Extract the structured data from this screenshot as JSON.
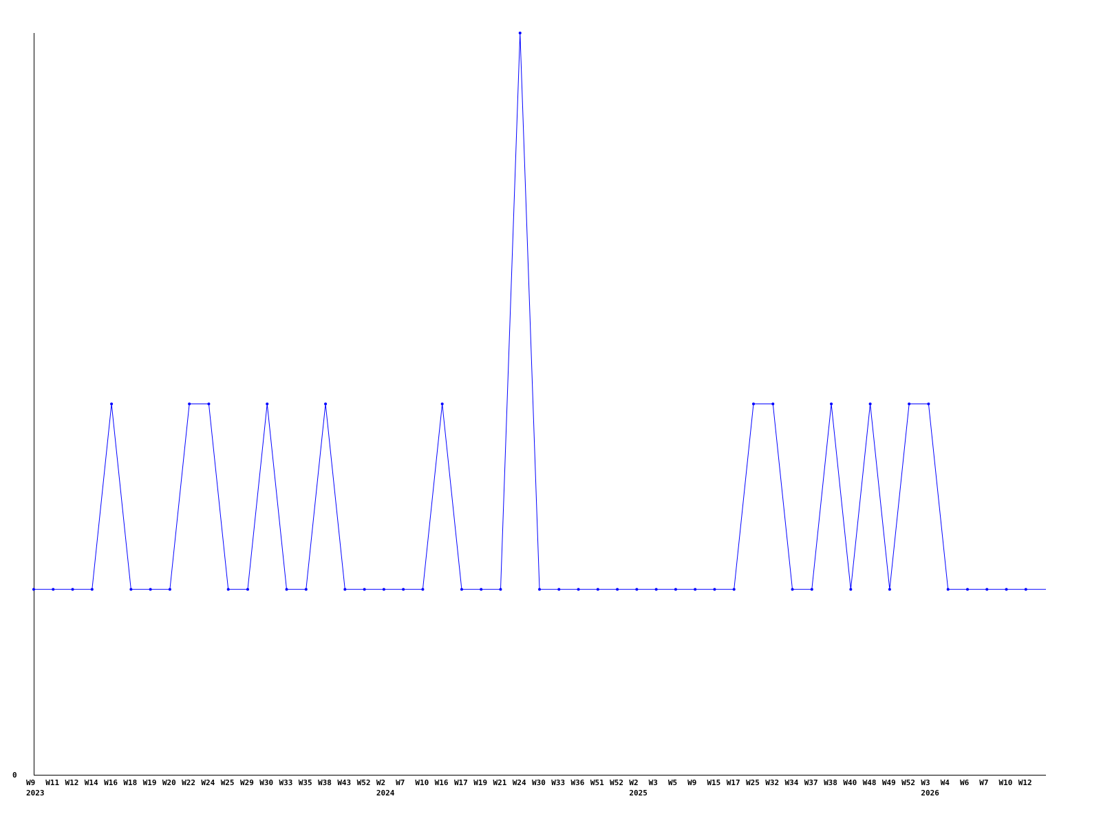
{
  "chart_data": {
    "type": "line",
    "title": "",
    "xlabel": "",
    "ylabel": "",
    "ylim": [
      0,
      4
    ],
    "y_tick_labels": [
      "0"
    ],
    "grid": false,
    "line_color": "#0000ff",
    "axis_color": "#000000",
    "categories": [
      "W9",
      "W11",
      "W12",
      "W14",
      "W16",
      "W18",
      "W19",
      "W20",
      "W22",
      "W24",
      "W25",
      "W29",
      "W30",
      "W33",
      "W35",
      "W38",
      "W43",
      "W52",
      "W2",
      "W7",
      "W10",
      "W16",
      "W17",
      "W19",
      "W21",
      "W24",
      "W30",
      "W33",
      "W36",
      "W51",
      "W52",
      "W2",
      "W3",
      "W5",
      "W9",
      "W15",
      "W17",
      "W25",
      "W32",
      "W34",
      "W37",
      "W38",
      "W40",
      "W48",
      "W49",
      "W52",
      "W3",
      "W4",
      "W6",
      "W7",
      "W10",
      "W12"
    ],
    "year_labels": [
      {
        "index": 0,
        "label": "2023"
      },
      {
        "index": 18,
        "label": "2024"
      },
      {
        "index": 31,
        "label": "2025"
      },
      {
        "index": 46,
        "label": "2026"
      }
    ],
    "values": [
      1,
      1,
      1,
      1,
      2,
      1,
      1,
      1,
      2,
      2,
      1,
      1,
      2,
      1,
      1,
      2,
      1,
      1,
      1,
      1,
      1,
      2,
      1,
      1,
      1,
      4,
      1,
      1,
      1,
      1,
      1,
      1,
      1,
      1,
      1,
      1,
      1,
      2,
      2,
      1,
      1,
      2,
      1,
      2,
      1,
      2,
      2,
      1,
      1,
      1,
      1,
      1
    ]
  }
}
